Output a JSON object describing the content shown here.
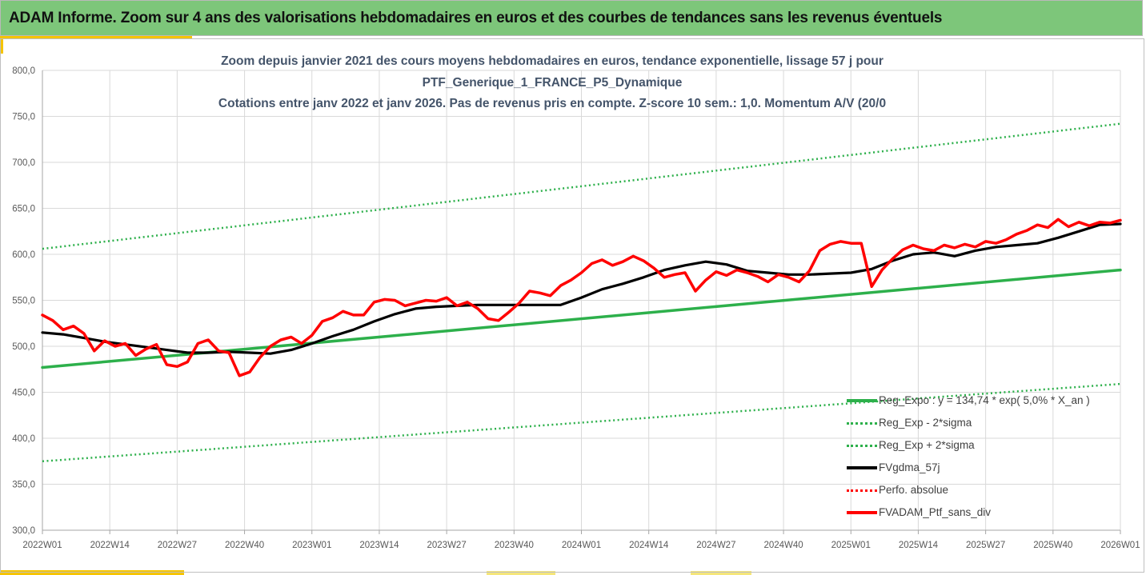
{
  "banner": {
    "title": "ADAM Informe. Zoom sur 4 ans des valorisations hebdomadaires en euros et des courbes de tendances sans les revenus éventuels"
  },
  "colors": {
    "banner_bg": "#7dc67a",
    "reg_exp": "#2db04b",
    "sigma_lines": "#2db04b",
    "fvgdma": "#000000",
    "perfo_absolue": "#ff0000",
    "fvadam": "#ff0000",
    "grid": "#d9d9d9"
  },
  "chart_data": {
    "type": "line",
    "title_lines": [
      "Zoom depuis janvier 2021 des cours moyens hebdomadaires  en euros, tendance exponentielle, lissage 57 j pour",
      "PTF_Generique_1_FRANCE_P5_Dynamique",
      "Cotations entre janv 2022 et janv 2026. Pas de revenus pris en compte. Z-score 10 sem.: 1,0. Momentum A/V (20/0"
    ],
    "xlabel": "",
    "ylabel": "",
    "ylim": [
      300,
      800
    ],
    "yticks": [
      "800,0",
      "750,0",
      "700,0",
      "650,0",
      "600,0",
      "550,0",
      "500,0",
      "450,0",
      "400,0",
      "350,0",
      "300,0"
    ],
    "ytick_values": [
      800,
      750,
      700,
      650,
      600,
      550,
      500,
      450,
      400,
      350,
      300
    ],
    "xlim_weeks": [
      0,
      208
    ],
    "xtick_labels": [
      "2022W01",
      "2022W14",
      "2022W27",
      "2022W40",
      "2023W01",
      "2023W14",
      "2023W27",
      "2023W40",
      "2024W01",
      "2024W14",
      "2024W27",
      "2024W40",
      "2025W01",
      "2025W14",
      "2025W27",
      "2025W40",
      "2026W01"
    ],
    "xtick_weeks": [
      0,
      13,
      26,
      39,
      52,
      65,
      78,
      91,
      104,
      117,
      130,
      143,
      156,
      169,
      182,
      195,
      208
    ],
    "grid": true,
    "legend_position": "bottom-right",
    "legend": [
      {
        "name": "Reg_Expo : y = 134,74 * exp( 5,0% *  X_an )",
        "style": "solid-thick",
        "color_key": "reg_exp"
      },
      {
        "name": "Reg_Exp - 2*sigma",
        "style": "dotted",
        "color_key": "sigma_lines"
      },
      {
        "name": "Reg_Exp + 2*sigma",
        "style": "dotted",
        "color_key": "sigma_lines"
      },
      {
        "name": "FVgdma_57j",
        "style": "solid-thick",
        "color_key": "fvgdma"
      },
      {
        "name": "Perfo. absolue",
        "style": "dotted",
        "color_key": "perfo_absolue"
      },
      {
        "name": "FVADAM_Ptf_sans_div",
        "style": "solid-thick",
        "color_key": "fvadam"
      }
    ],
    "series": [
      {
        "name": "Reg_Expo : y = 134,74 * exp( 5,0% *  X_an )",
        "x": [
          0,
          208
        ],
        "values": [
          477,
          583
        ]
      },
      {
        "name": "Reg_Exp - 2*sigma",
        "x": [
          0,
          208
        ],
        "values": [
          375,
          459
        ]
      },
      {
        "name": "Reg_Exp + 2*sigma",
        "x": [
          0,
          208
        ],
        "values": [
          606,
          742
        ]
      },
      {
        "name": "FVgdma_57j",
        "x": [
          0,
          4,
          8,
          12,
          16,
          20,
          24,
          28,
          32,
          36,
          40,
          44,
          48,
          52,
          56,
          60,
          64,
          68,
          72,
          76,
          80,
          84,
          88,
          92,
          96,
          100,
          104,
          108,
          112,
          116,
          120,
          124,
          128,
          132,
          136,
          140,
          144,
          148,
          152,
          156,
          160,
          164,
          168,
          172,
          176,
          180,
          184,
          188,
          192,
          196,
          200,
          204,
          208
        ],
        "values": [
          515,
          513,
          509,
          505,
          502,
          499,
          496,
          493,
          493,
          494,
          493,
          492,
          496,
          503,
          511,
          518,
          527,
          535,
          541,
          543,
          544,
          545,
          545,
          545,
          545,
          545,
          553,
          562,
          568,
          575,
          583,
          588,
          592,
          589,
          582,
          580,
          578,
          578,
          579,
          580,
          584,
          593,
          600,
          602,
          598,
          604,
          608,
          610,
          612,
          618,
          625,
          632,
          633
        ]
      },
      {
        "name": "FVADAM_Ptf_sans_div",
        "x": [
          0,
          2,
          4,
          6,
          8,
          10,
          12,
          14,
          16,
          18,
          20,
          22,
          24,
          26,
          28,
          30,
          32,
          34,
          36,
          38,
          40,
          42,
          44,
          46,
          48,
          50,
          52,
          54,
          56,
          58,
          60,
          62,
          64,
          66,
          68,
          70,
          72,
          74,
          76,
          78,
          80,
          82,
          84,
          86,
          88,
          90,
          92,
          94,
          96,
          98,
          100,
          102,
          104,
          106,
          108,
          110,
          112,
          114,
          116,
          118,
          120,
          122,
          124,
          126,
          128,
          130,
          132,
          134,
          136,
          138,
          140,
          142,
          144,
          146,
          148,
          150,
          152,
          154,
          156,
          158,
          160,
          162,
          164,
          166,
          168,
          170,
          172,
          174,
          176,
          178,
          180,
          182,
          184,
          186,
          188,
          190,
          192,
          194,
          196,
          198,
          200,
          202,
          204,
          206,
          208
        ],
        "values": [
          534,
          528,
          518,
          522,
          514,
          495,
          506,
          500,
          503,
          490,
          497,
          502,
          480,
          478,
          483,
          503,
          507,
          495,
          493,
          468,
          472,
          488,
          500,
          507,
          510,
          503,
          512,
          527,
          531,
          538,
          534,
          534,
          548,
          551,
          550,
          544,
          547,
          550,
          549,
          553,
          544,
          548,
          541,
          530,
          528,
          537,
          547,
          560,
          558,
          555,
          566,
          572,
          580,
          590,
          594,
          588,
          592,
          598,
          593,
          585,
          575,
          578,
          580,
          560,
          572,
          581,
          577,
          583,
          580,
          576,
          570,
          578,
          575,
          570,
          582,
          604,
          611,
          614,
          612,
          612,
          565,
          583,
          595,
          605,
          610,
          606,
          604,
          610,
          607,
          611,
          608,
          614,
          612,
          616,
          622,
          626,
          632,
          629,
          638,
          630,
          635,
          631,
          635,
          634,
          637
        ]
      }
    ]
  }
}
